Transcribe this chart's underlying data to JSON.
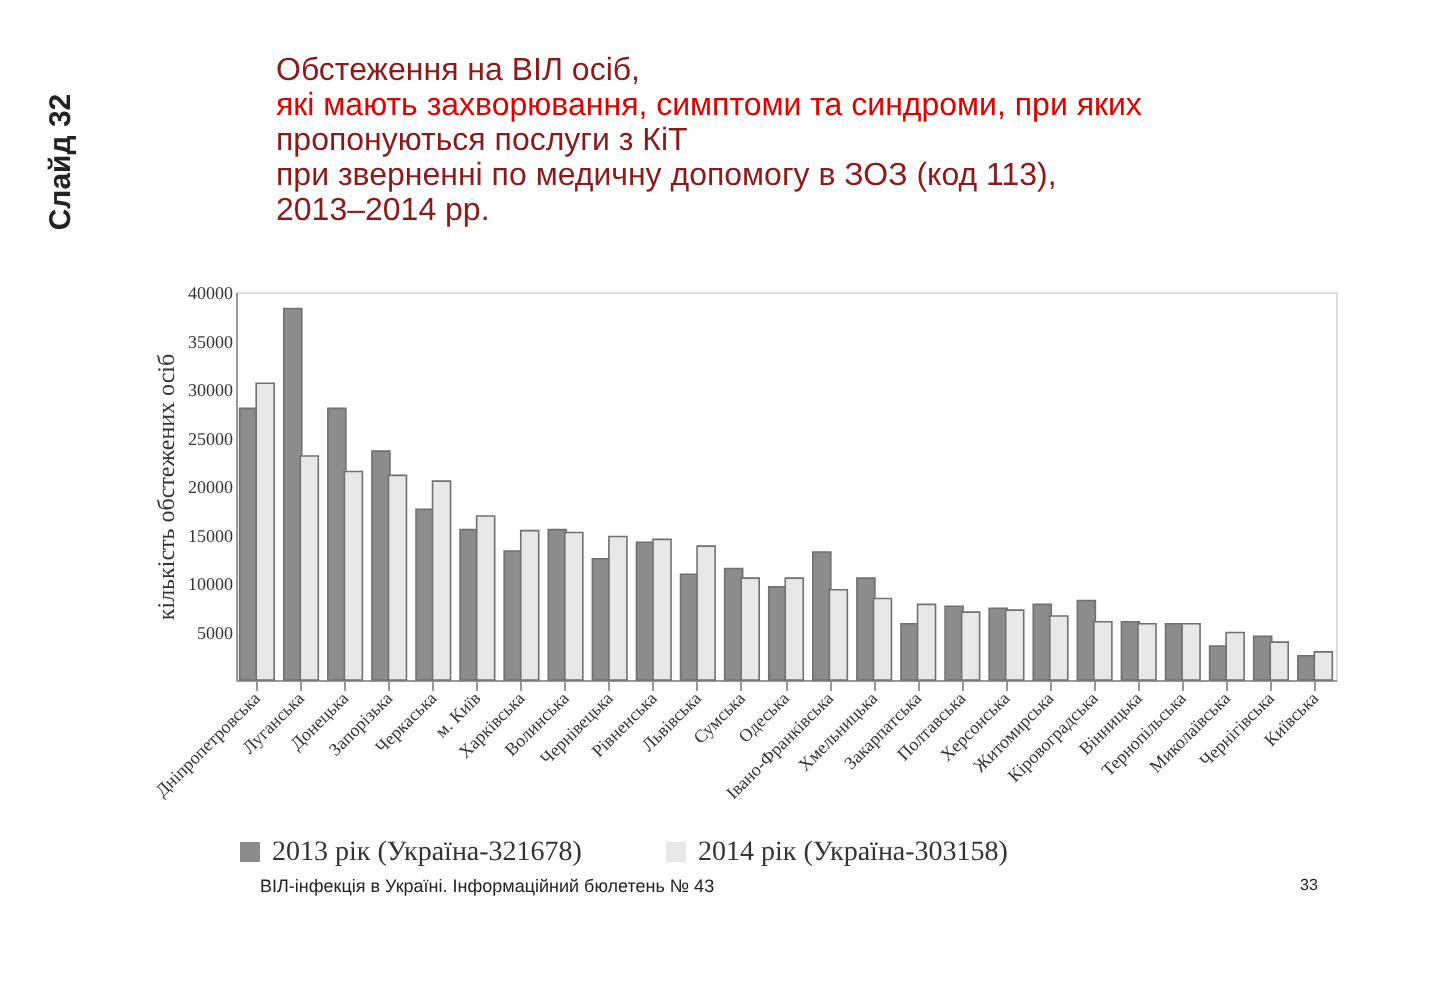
{
  "chart_data": {
    "type": "bar",
    "title": "Обстеження на ВІЛ осіб,\nякі мають захворювання, симптоми та синдроми, при яких\nпропонуються послуги з КіТ\nпри зверненні по медичну допомогу в ЗОЗ (код 113),\n2013–2014 рр.",
    "ylabel": "кількість обстежених осіб",
    "categories": [
      "Дніпропетровська",
      "Луганська",
      "Донецька",
      "Запорізька",
      "Черкаська",
      "м. Київ",
      "Харківська",
      "Волинська",
      "Чернівецька",
      "Рівненська",
      "Львівська",
      "Сумська",
      "Одеська",
      "Івано-Франківська",
      "Хмельницька",
      "Закарпатська",
      "Полтавська",
      "Херсонська",
      "Житомирська",
      "Кіровоградська",
      "Вінницька",
      "Тернопільська",
      "Миколаївська",
      "Чернігівська",
      "Київська"
    ],
    "series": [
      {
        "name": "2013 рік (Україна-321678)",
        "color": "#8c8c8c",
        "values": [
          28000,
          38300,
          28000,
          23600,
          17600,
          15500,
          13300,
          15500,
          12500,
          14200,
          10900,
          11500,
          9600,
          13200,
          10500,
          5800,
          7600,
          7400,
          7800,
          8200,
          6000,
          5800,
          3500,
          4500,
          2500
        ]
      },
      {
        "name": "2014 рік (Україна-303158)",
        "color": "#e8e8e8",
        "values": [
          30600,
          23100,
          21500,
          21100,
          20500,
          16900,
          15400,
          15200,
          14800,
          14500,
          13800,
          10500,
          10500,
          9300,
          8400,
          7800,
          7000,
          7200,
          6600,
          6000,
          5800,
          5800,
          4900,
          3900,
          2900
        ]
      }
    ],
    "ylim": [
      0,
      40000
    ],
    "yticks": [
      5000,
      10000,
      15000,
      20000,
      25000,
      30000,
      35000,
      40000
    ],
    "grid": false,
    "legend": "bottom",
    "annotations": [
      "Слайд 32",
      "ВІЛ-інфекція в Україні. Інформаційний бюлетень № 43",
      "33"
    ]
  }
}
